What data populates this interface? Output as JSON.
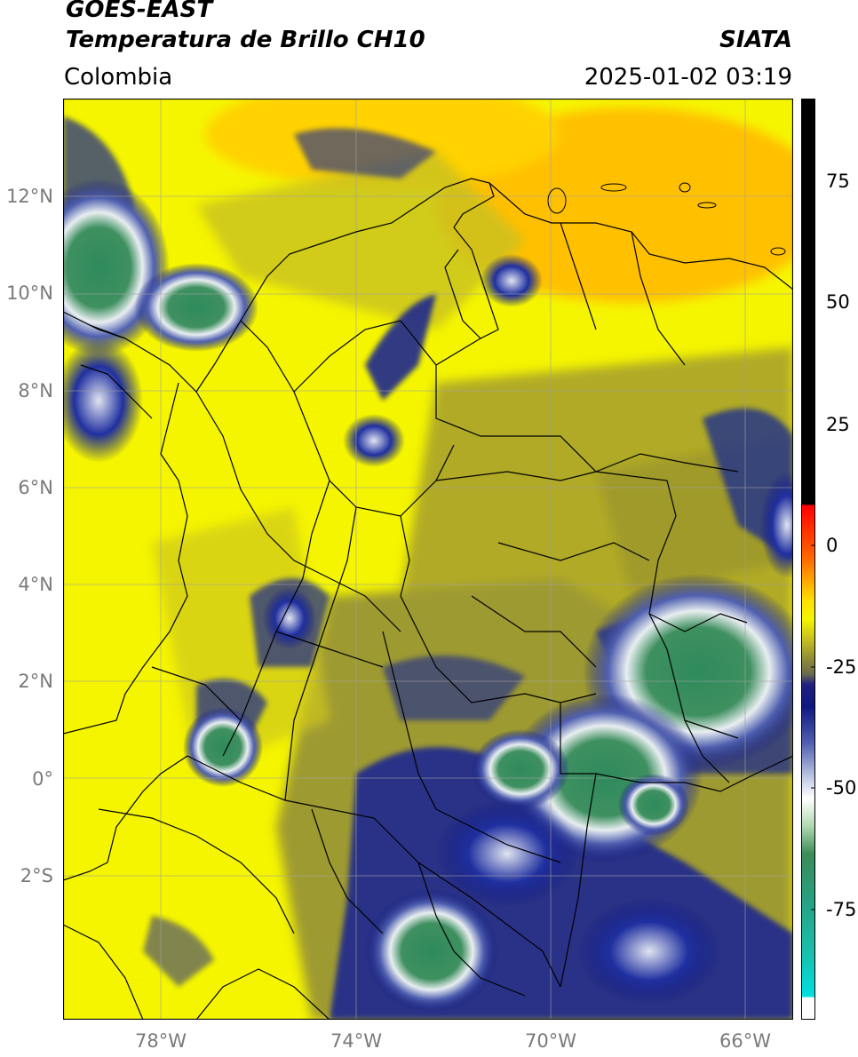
{
  "header": {
    "satellite": "GOES-EAST",
    "product": "Temperatura de Brillo CH10",
    "region": "Colombia",
    "source": "SIATA",
    "datetime": "2025-01-02 03:19"
  },
  "axes": {
    "lat_labels": [
      "12°N",
      "10°N",
      "8°N",
      "6°N",
      "4°N",
      "2°N",
      "0°",
      "2°S"
    ],
    "lon_labels": [
      "78°W",
      "74°W",
      "70°W",
      "66°W"
    ]
  },
  "colorbar": {
    "ticks": [
      "75",
      "50",
      "25",
      "0",
      "-25",
      "-50",
      "-75"
    ],
    "tick_values": [
      75,
      50,
      25,
      0,
      -25,
      -50,
      -75
    ],
    "range": [
      -95,
      90
    ]
  },
  "colors": {
    "warm_yellow": "#f5f500",
    "orange": "#ffb300",
    "olive": "#a8a830",
    "navy": "#101880",
    "white": "#f4f4f8",
    "cold_green": "#3c8c58",
    "teal": "#00c8b4"
  }
}
